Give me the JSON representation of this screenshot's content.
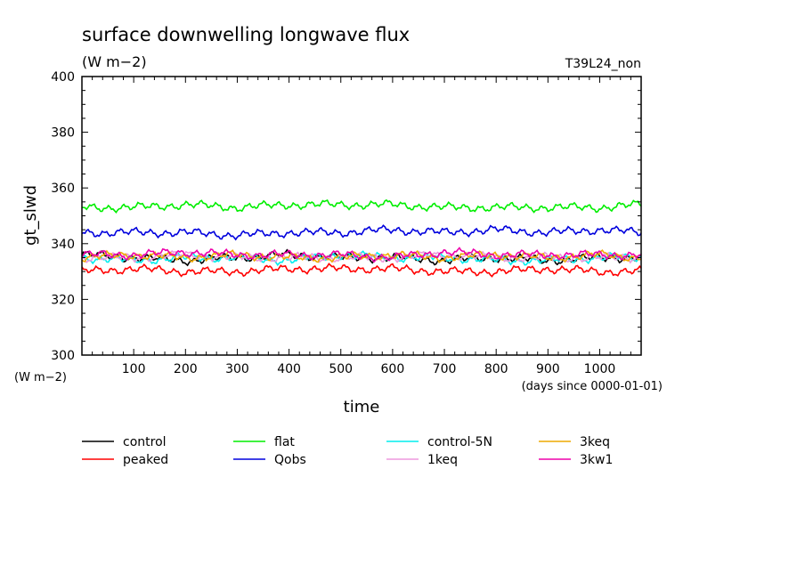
{
  "chart_data": {
    "type": "line",
    "title": "surface downwelling longwave flux",
    "units": "(W m−2)",
    "y_units_label": "(W m−2)",
    "experiment": "T39L24_non",
    "xlabel": "time",
    "x_units": "(days since 0000-01-01)",
    "ylabel": "gt_slwd",
    "xlim": [
      0,
      1080
    ],
    "ylim": [
      300,
      400
    ],
    "x_ticks": [
      100,
      200,
      300,
      400,
      500,
      600,
      700,
      800,
      900,
      1000
    ],
    "y_ticks": [
      300,
      320,
      340,
      360,
      380,
      400
    ],
    "grid": false,
    "legend_position": "bottom",
    "series": [
      {
        "name": "control",
        "color": "#000000",
        "x": [
          0,
          100,
          200,
          300,
          400,
          500,
          600,
          700,
          800,
          900,
          1000,
          1080
        ],
        "values": [
          336,
          335,
          334,
          335,
          336,
          335,
          335,
          334,
          335,
          334,
          335,
          335
        ]
      },
      {
        "name": "peaked",
        "color": "#ff0000",
        "x": [
          0,
          100,
          200,
          300,
          400,
          500,
          600,
          700,
          800,
          900,
          1000,
          1080
        ],
        "values": [
          330,
          331,
          330,
          330,
          331,
          331,
          331,
          330,
          330,
          331,
          330,
          330
        ]
      },
      {
        "name": "flat",
        "color": "#00ee00",
        "x": [
          0,
          100,
          200,
          300,
          400,
          500,
          600,
          700,
          800,
          900,
          1000,
          1080
        ],
        "values": [
          353,
          353,
          354,
          353,
          354,
          354,
          354,
          353,
          353,
          353,
          353,
          354
        ]
      },
      {
        "name": "Qobs",
        "color": "#0000dd",
        "x": [
          0,
          100,
          200,
          300,
          400,
          500,
          600,
          700,
          800,
          900,
          1000,
          1080
        ],
        "values": [
          344,
          344,
          344,
          343,
          344,
          344,
          345,
          344,
          345,
          344,
          345,
          344
        ]
      },
      {
        "name": "control-5N",
        "color": "#00eeee",
        "x": [
          0,
          100,
          200,
          300,
          400,
          500,
          600,
          700,
          800,
          900,
          1000,
          1080
        ],
        "values": [
          335,
          334,
          335,
          335,
          334,
          336,
          335,
          335,
          334,
          334,
          335,
          335
        ]
      },
      {
        "name": "1keq",
        "color": "#ee99dd",
        "x": [
          0,
          100,
          200,
          300,
          400,
          500,
          600,
          700,
          800,
          900,
          1000,
          1080
        ],
        "values": [
          335,
          335,
          336,
          335,
          335,
          335,
          335,
          336,
          335,
          335,
          335,
          335
        ]
      },
      {
        "name": "3keq",
        "color": "#eeaa00",
        "x": [
          0,
          100,
          200,
          300,
          400,
          500,
          600,
          700,
          800,
          900,
          1000,
          1080
        ],
        "values": [
          335,
          336,
          335,
          336,
          335,
          335,
          336,
          335,
          336,
          335,
          336,
          335
        ]
      },
      {
        "name": "3kw1",
        "color": "#ee00aa",
        "x": [
          0,
          100,
          200,
          300,
          400,
          500,
          600,
          700,
          800,
          900,
          1000,
          1080
        ],
        "values": [
          336,
          336,
          337,
          336,
          336,
          336,
          335,
          337,
          336,
          336,
          336,
          336
        ]
      }
    ]
  }
}
